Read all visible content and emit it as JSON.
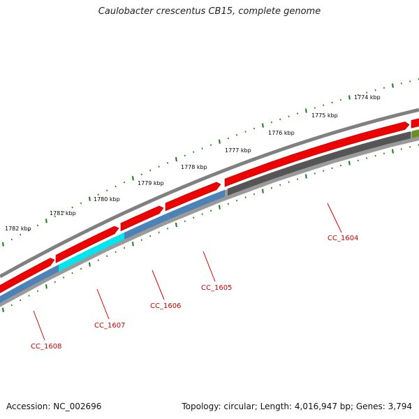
{
  "title": "Caulobacter crescentus CB15, complete genome",
  "footer": {
    "accession": "Accession: NC_002696",
    "summary": "Topology: circular; Length: 4,016,947 bp; Genes: 3,794"
  },
  "ruler": {
    "labels": [
      "1774 kbp",
      "1775 kbp",
      "1776 kbp",
      "1777 kbp",
      "1778 kbp",
      "1779 kbp",
      "1780 kbp",
      "1781 kbp",
      "1782 kbp"
    ]
  },
  "genes": [
    {
      "label": "CC_1604",
      "color": "#555555"
    },
    {
      "label": "CC_1605",
      "color": "#4d82b8"
    },
    {
      "label": "CC_1606",
      "color": "#4d82b8"
    },
    {
      "label": "CC_1607",
      "color": "#00e5ee"
    },
    {
      "label": "CC_1608",
      "color": "#4d82b8"
    }
  ],
  "colors": {
    "backbone": "#808080",
    "forward_cds": "#ee0000",
    "ruler": "#1a7a1a",
    "label_line": "#dd0000",
    "olive": "#6b8e23"
  }
}
